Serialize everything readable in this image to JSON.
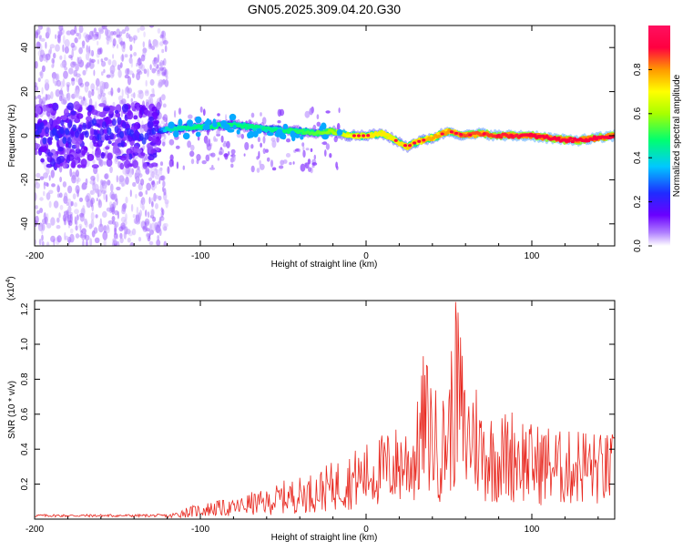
{
  "title": "GN05.2025.309.04.20.G30",
  "chart_data": [
    {
      "type": "heatmap",
      "xlabel": "Height of straight line (km)",
      "ylabel": "Frequency (Hz)",
      "xlim": [
        -200,
        150
      ],
      "ylim": [
        -50,
        50
      ],
      "x_ticks": [
        -200,
        -100,
        0,
        100
      ],
      "y_ticks": [
        -40,
        -20,
        0,
        20,
        40
      ],
      "colorbar": {
        "label": "Normalized spectral amplitude",
        "range": [
          0,
          1
        ],
        "ticks": [
          "0.0",
          "0.2",
          "0.4",
          "0.6",
          "0.8"
        ],
        "colormap": [
          "#ffffff",
          "#b080ff",
          "#6a00ff",
          "#1f2cff",
          "#00c8ff",
          "#00ff70",
          "#a8ff00",
          "#ffff00",
          "#ff9900",
          "#ff0040",
          "#ff1060"
        ]
      },
      "ridge": {
        "description_values": "peak frequency (Hz) vs height (km)",
        "x": [
          -200,
          -180,
          -160,
          -140,
          -125,
          -120,
          -100,
          -80,
          -60,
          -40,
          -30,
          -20,
          -10,
          0,
          10,
          20,
          25,
          30,
          40,
          50,
          60,
          70,
          80,
          90,
          100,
          110,
          120,
          130,
          140,
          150
        ],
        "y": [
          2,
          0,
          3,
          1,
          2,
          3,
          4,
          5,
          3,
          2,
          1,
          2,
          0,
          0,
          1,
          -3,
          -5,
          -3,
          -1,
          2,
          0,
          1,
          0,
          0,
          0,
          -1,
          -2,
          -2,
          -1,
          0
        ],
        "amplitude": [
          0.28,
          0.3,
          0.28,
          0.3,
          0.3,
          0.45,
          0.5,
          0.5,
          0.48,
          0.52,
          0.55,
          0.6,
          0.7,
          0.72,
          0.72,
          0.72,
          0.75,
          0.75,
          0.78,
          0.8,
          0.85,
          0.85,
          0.88,
          0.88,
          0.9,
          0.9,
          0.9,
          0.9,
          0.9,
          0.9
        ]
      }
    },
    {
      "type": "line",
      "xlabel": "Height of straight line (km)",
      "ylabel": "SNR (10 * v/v)",
      "y_multiplier": "(x10",
      "y_multiplier_exponent": "4",
      "y_multiplier_close": ")",
      "xlim": [
        -200,
        150
      ],
      "ylim": [
        0,
        1.25
      ],
      "x_ticks": [
        -200,
        -100,
        0,
        100
      ],
      "y_ticks": [
        "0.2",
        "0.4",
        "0.6",
        "0.8",
        "1.0",
        "1.2"
      ],
      "color": "#e8271e",
      "series": [
        {
          "x": [
            -200,
            -180,
            -160,
            -140,
            -120,
            -110,
            -100,
            -90,
            -80,
            -70,
            -60,
            -50,
            -40,
            -30,
            -20,
            -10,
            0,
            10,
            20,
            30,
            35,
            40,
            45,
            50,
            55,
            60,
            65,
            70,
            80,
            90,
            100,
            110,
            120,
            130,
            140,
            150
          ],
          "y": [
            0.02,
            0.02,
            0.02,
            0.02,
            0.02,
            0.06,
            0.08,
            0.1,
            0.1,
            0.14,
            0.15,
            0.2,
            0.22,
            0.25,
            0.3,
            0.35,
            0.4,
            0.45,
            0.5,
            0.55,
            0.9,
            0.75,
            0.6,
            0.8,
            1.22,
            0.7,
            0.8,
            0.6,
            0.55,
            0.6,
            0.5,
            0.5,
            0.45,
            0.5,
            0.45,
            0.45
          ]
        }
      ]
    }
  ]
}
